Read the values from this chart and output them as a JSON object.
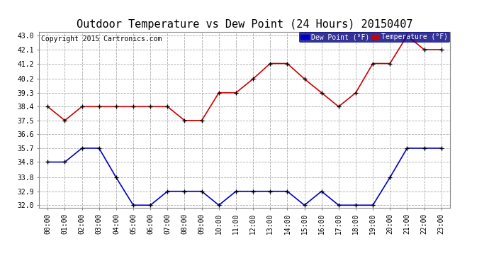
{
  "title": "Outdoor Temperature vs Dew Point (24 Hours) 20150407",
  "copyright": "Copyright 2015 Cartronics.com",
  "hours": [
    "00:00",
    "01:00",
    "02:00",
    "03:00",
    "04:00",
    "05:00",
    "06:00",
    "07:00",
    "08:00",
    "09:00",
    "10:00",
    "11:00",
    "12:00",
    "13:00",
    "14:00",
    "15:00",
    "16:00",
    "17:00",
    "18:00",
    "19:00",
    "20:00",
    "21:00",
    "22:00",
    "23:00"
  ],
  "temperature": [
    38.4,
    37.5,
    38.4,
    38.4,
    38.4,
    38.4,
    38.4,
    38.4,
    37.5,
    37.5,
    39.3,
    39.3,
    40.2,
    41.2,
    41.2,
    40.2,
    39.3,
    38.4,
    39.3,
    41.2,
    41.2,
    43.0,
    42.1,
    42.1
  ],
  "dew_point": [
    34.8,
    34.8,
    35.7,
    35.7,
    33.8,
    32.0,
    32.0,
    32.9,
    32.9,
    32.9,
    32.0,
    32.9,
    32.9,
    32.9,
    32.9,
    32.0,
    32.9,
    32.0,
    32.0,
    32.0,
    33.8,
    35.7,
    35.7,
    35.7
  ],
  "temp_color": "#cc0000",
  "dew_color": "#0000cc",
  "bg_color": "#ffffff",
  "plot_bg_color": "#ffffff",
  "grid_color": "#aaaaaa",
  "ylim_min": 32.0,
  "ylim_max": 43.0,
  "yticks": [
    32.0,
    32.9,
    33.8,
    34.8,
    35.7,
    36.6,
    37.5,
    38.4,
    39.3,
    40.2,
    41.2,
    42.1,
    43.0
  ],
  "legend_dew_label": "Dew Point (°F)",
  "legend_temp_label": "Temperature (°F)",
  "legend_bg_color": "#000080",
  "legend_text_color": "#ffffff",
  "title_fontsize": 11,
  "copyright_fontsize": 7,
  "tick_fontsize": 7,
  "marker": "+",
  "marker_size": 5,
  "marker_color": "#000000",
  "linewidth": 1.2
}
